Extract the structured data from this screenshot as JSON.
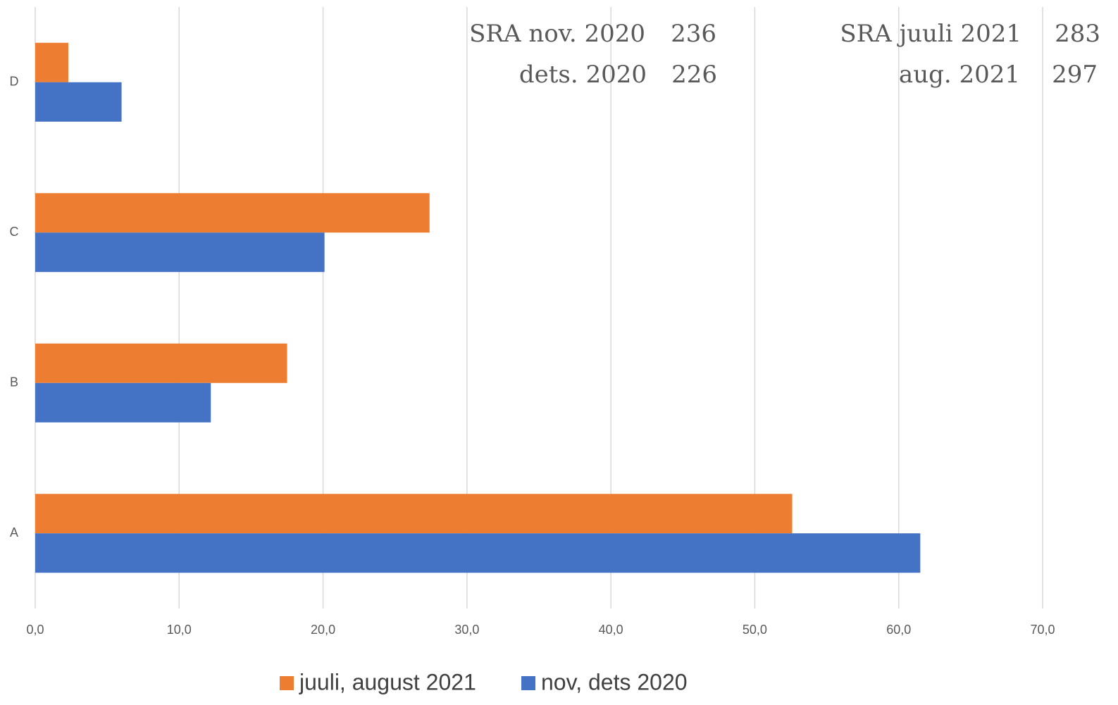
{
  "chart_data": {
    "type": "hbar",
    "categories": [
      "A",
      "B",
      "C",
      "D"
    ],
    "series": [
      {
        "name": "juuli, august 2021",
        "color": "#ed7d31",
        "values": [
          52.6,
          17.5,
          27.4,
          2.3
        ]
      },
      {
        "name": "nov, dets 2020",
        "color": "#4472c4",
        "values": [
          61.5,
          12.2,
          20.1,
          6.0
        ]
      }
    ],
    "xlim": [
      0,
      70
    ],
    "xticks": [
      {
        "value": 0,
        "label": "0,0"
      },
      {
        "value": 10,
        "label": "10,0"
      },
      {
        "value": 20,
        "label": "20,0"
      },
      {
        "value": 30,
        "label": "30,0"
      },
      {
        "value": 40,
        "label": "40,0"
      },
      {
        "value": 50,
        "label": "50,0"
      },
      {
        "value": 60,
        "label": "60,0"
      },
      {
        "value": 70,
        "label": "70,0"
      }
    ],
    "grid": true,
    "legend": "bottom",
    "annotations": [
      "SRA nov. 2020",
      "236",
      "dets. 2020",
      "226",
      "SRA juuli 2021",
      "283",
      "aug. 2021",
      "297"
    ]
  }
}
